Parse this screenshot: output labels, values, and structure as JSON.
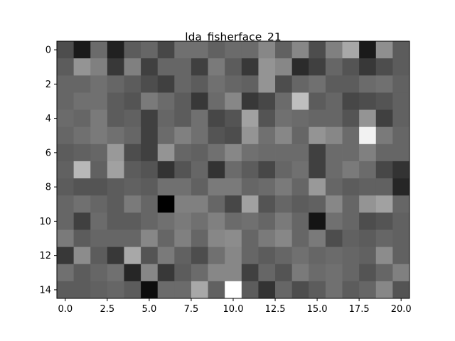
{
  "chart_data": {
    "type": "heatmap",
    "title": "lda_fisherface_21",
    "xlabel": "",
    "ylabel": "",
    "colormap": "gray",
    "xlim": [
      -0.5,
      20.5
    ],
    "ylim": [
      14.5,
      -0.5
    ],
    "x_ticks": [
      0.0,
      2.5,
      5.0,
      7.5,
      10.0,
      12.5,
      15.0,
      17.5,
      20.0
    ],
    "x_tick_labels": [
      "0.0",
      "2.5",
      "5.0",
      "7.5",
      "10.0",
      "12.5",
      "15.0",
      "17.5",
      "20.0"
    ],
    "y_ticks": [
      0,
      2,
      4,
      6,
      8,
      10,
      12,
      14
    ],
    "y_tick_labels": [
      "0",
      "2",
      "4",
      "6",
      "8",
      "10",
      "12",
      "14"
    ],
    "grid": false,
    "legend": "none",
    "values": [
      [
        0.3,
        0.1,
        0.42,
        0.13,
        0.36,
        0.4,
        0.28,
        0.44,
        0.44,
        0.38,
        0.42,
        0.42,
        0.53,
        0.38,
        0.53,
        0.3,
        0.5,
        0.66,
        0.1,
        0.56,
        0.36
      ],
      [
        0.36,
        0.58,
        0.5,
        0.22,
        0.5,
        0.25,
        0.4,
        0.4,
        0.25,
        0.48,
        0.36,
        0.22,
        0.58,
        0.53,
        0.17,
        0.25,
        0.4,
        0.33,
        0.22,
        0.3,
        0.36
      ],
      [
        0.4,
        0.4,
        0.44,
        0.4,
        0.36,
        0.3,
        0.25,
        0.4,
        0.36,
        0.44,
        0.4,
        0.38,
        0.58,
        0.3,
        0.4,
        0.44,
        0.36,
        0.36,
        0.42,
        0.44,
        0.38
      ],
      [
        0.4,
        0.44,
        0.44,
        0.36,
        0.33,
        0.48,
        0.42,
        0.36,
        0.22,
        0.42,
        0.53,
        0.22,
        0.28,
        0.42,
        0.75,
        0.36,
        0.4,
        0.28,
        0.3,
        0.33,
        0.38
      ],
      [
        0.42,
        0.4,
        0.48,
        0.36,
        0.38,
        0.25,
        0.4,
        0.36,
        0.44,
        0.28,
        0.33,
        0.63,
        0.33,
        0.44,
        0.42,
        0.4,
        0.4,
        0.33,
        0.58,
        0.25,
        0.38
      ],
      [
        0.4,
        0.44,
        0.48,
        0.44,
        0.4,
        0.25,
        0.42,
        0.5,
        0.44,
        0.33,
        0.3,
        0.58,
        0.44,
        0.53,
        0.4,
        0.58,
        0.53,
        0.42,
        0.95,
        0.48,
        0.4
      ],
      [
        0.36,
        0.38,
        0.4,
        0.6,
        0.3,
        0.25,
        0.58,
        0.4,
        0.38,
        0.44,
        0.53,
        0.44,
        0.42,
        0.42,
        0.42,
        0.25,
        0.42,
        0.42,
        0.5,
        0.4,
        0.4
      ],
      [
        0.38,
        0.72,
        0.38,
        0.63,
        0.36,
        0.33,
        0.2,
        0.33,
        0.4,
        0.2,
        0.42,
        0.36,
        0.28,
        0.4,
        0.44,
        0.25,
        0.42,
        0.48,
        0.42,
        0.28,
        0.2
      ],
      [
        0.36,
        0.33,
        0.33,
        0.36,
        0.38,
        0.36,
        0.44,
        0.44,
        0.38,
        0.48,
        0.48,
        0.4,
        0.42,
        0.48,
        0.4,
        0.6,
        0.4,
        0.36,
        0.38,
        0.38,
        0.15
      ],
      [
        0.4,
        0.44,
        0.4,
        0.36,
        0.48,
        0.4,
        0.0,
        0.5,
        0.5,
        0.4,
        0.28,
        0.63,
        0.33,
        0.4,
        0.36,
        0.38,
        0.53,
        0.4,
        0.58,
        0.63,
        0.4
      ],
      [
        0.4,
        0.25,
        0.42,
        0.36,
        0.36,
        0.4,
        0.44,
        0.48,
        0.44,
        0.5,
        0.42,
        0.44,
        0.4,
        0.48,
        0.4,
        0.08,
        0.44,
        0.4,
        0.3,
        0.33,
        0.38
      ],
      [
        0.48,
        0.36,
        0.4,
        0.4,
        0.4,
        0.53,
        0.4,
        0.5,
        0.4,
        0.53,
        0.55,
        0.4,
        0.48,
        0.53,
        0.4,
        0.48,
        0.3,
        0.38,
        0.36,
        0.4,
        0.38
      ],
      [
        0.22,
        0.55,
        0.36,
        0.22,
        0.66,
        0.33,
        0.48,
        0.38,
        0.3,
        0.44,
        0.53,
        0.4,
        0.36,
        0.4,
        0.44,
        0.4,
        0.42,
        0.4,
        0.38,
        0.55,
        0.38
      ],
      [
        0.44,
        0.36,
        0.4,
        0.44,
        0.15,
        0.53,
        0.22,
        0.36,
        0.42,
        0.53,
        0.53,
        0.25,
        0.4,
        0.33,
        0.48,
        0.42,
        0.44,
        0.4,
        0.33,
        0.4,
        0.5
      ],
      [
        0.36,
        0.36,
        0.38,
        0.4,
        0.36,
        0.05,
        0.42,
        0.42,
        0.66,
        0.38,
        1.0,
        0.36,
        0.2,
        0.4,
        0.3,
        0.36,
        0.44,
        0.36,
        0.4,
        0.53,
        0.33
      ]
    ]
  }
}
